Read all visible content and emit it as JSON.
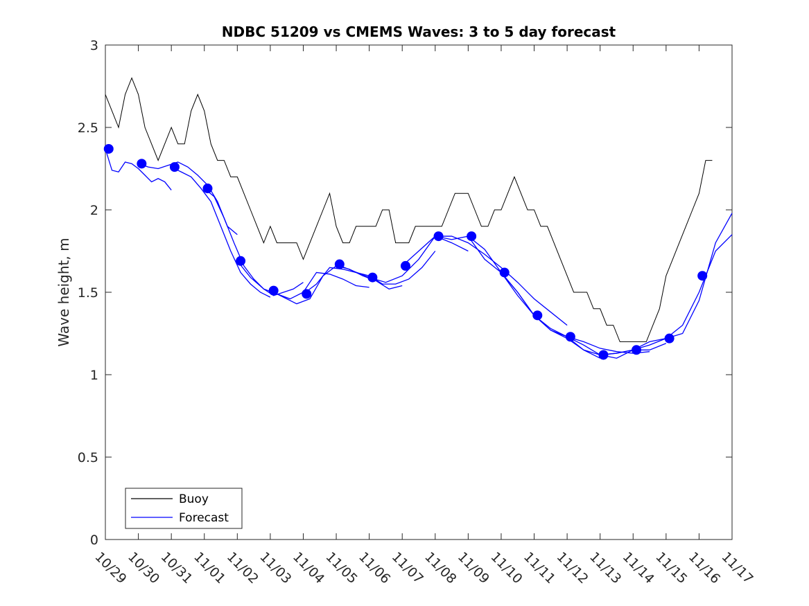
{
  "chart_data": {
    "type": "line",
    "title": "NDBC 51209 vs CMEMS Waves: 3 to 5 day forecast",
    "xlabel": "",
    "ylabel": "Wave height, m",
    "x_tick_labels": [
      "10/29",
      "10/30",
      "10/31",
      "11/01",
      "11/02",
      "11/03",
      "11/04",
      "11/05",
      "11/06",
      "11/07",
      "11/08",
      "11/09",
      "11/10",
      "11/11",
      "11/12",
      "11/13",
      "11/14",
      "11/15",
      "11/16",
      "11/17"
    ],
    "xlim_days": [
      0,
      19
    ],
    "ylim": [
      0,
      3
    ],
    "y_ticks": [
      0,
      0.5,
      1,
      1.5,
      2,
      2.5,
      3
    ],
    "y_tick_labels": [
      "0",
      "0.5",
      "1",
      "1.5",
      "2",
      "2.5",
      "3"
    ],
    "grid": false,
    "legend_position": "bottom-left",
    "colors": {
      "buoy": "#000000",
      "forecast": "#0000ff"
    },
    "series": [
      {
        "name": "Buoy",
        "type": "line",
        "x": [
          0,
          0.2,
          0.4,
          0.6,
          0.8,
          1.0,
          1.2,
          1.4,
          1.6,
          1.8,
          2.0,
          2.2,
          2.4,
          2.6,
          2.8,
          3.0,
          3.2,
          3.4,
          3.6,
          3.8,
          4.0,
          4.2,
          4.4,
          4.6,
          4.8,
          5.0,
          5.2,
          5.4,
          5.6,
          5.8,
          6.0,
          6.2,
          6.4,
          6.6,
          6.8,
          7.0,
          7.2,
          7.4,
          7.6,
          7.8,
          8.0,
          8.2,
          8.4,
          8.6,
          8.8,
          9.0,
          9.2,
          9.4,
          9.6,
          9.8,
          10.0,
          10.2,
          10.4,
          10.6,
          10.8,
          11.0,
          11.2,
          11.4,
          11.6,
          11.8,
          12.0,
          12.2,
          12.4,
          12.6,
          12.8,
          13.0,
          13.2,
          13.4,
          13.6,
          13.8,
          14.0,
          14.2,
          14.4,
          14.6,
          14.8,
          15.0,
          15.2,
          15.4,
          15.6,
          15.8,
          16.0,
          16.2,
          16.4,
          16.6,
          16.8,
          17.0,
          17.2,
          17.4,
          17.6,
          17.8,
          18.0,
          18.2,
          18.4
        ],
        "y": [
          2.7,
          2.6,
          2.5,
          2.7,
          2.8,
          2.7,
          2.5,
          2.4,
          2.3,
          2.4,
          2.5,
          2.4,
          2.4,
          2.6,
          2.7,
          2.6,
          2.4,
          2.3,
          2.3,
          2.2,
          2.2,
          2.1,
          2.0,
          1.9,
          1.8,
          1.9,
          1.8,
          1.8,
          1.8,
          1.8,
          1.7,
          1.8,
          1.9,
          2.0,
          2.1,
          1.9,
          1.8,
          1.8,
          1.9,
          1.9,
          1.9,
          1.9,
          2.0,
          2.0,
          1.8,
          1.8,
          1.8,
          1.9,
          1.9,
          1.9,
          1.9,
          1.9,
          2.0,
          2.1,
          2.1,
          2.1,
          2.0,
          1.9,
          1.9,
          2.0,
          2.0,
          2.1,
          2.2,
          2.1,
          2.0,
          2.0,
          1.9,
          1.9,
          1.8,
          1.7,
          1.6,
          1.5,
          1.5,
          1.5,
          1.4,
          1.4,
          1.3,
          1.3,
          1.2,
          1.2,
          1.2,
          1.2,
          1.2,
          1.3,
          1.4,
          1.6,
          1.7,
          1.8,
          1.9,
          2.0,
          2.1,
          2.3,
          2.3
        ]
      },
      {
        "name": "Forecast",
        "type": "line",
        "segments": [
          {
            "x": [
              0,
              0.2,
              0.4,
              0.6,
              0.8,
              1.0,
              1.2,
              1.4,
              1.6,
              1.8,
              2.0
            ],
            "y": [
              2.37,
              2.24,
              2.23,
              2.29,
              2.28,
              2.25,
              2.21,
              2.17,
              2.19,
              2.17,
              2.12
            ]
          },
          {
            "x": [
              1.0,
              1.3,
              1.6,
              1.9,
              2.2,
              2.5,
              2.8,
              3.1,
              3.4,
              3.7,
              4.0
            ],
            "y": [
              2.28,
              2.26,
              2.25,
              2.27,
              2.29,
              2.26,
              2.21,
              2.15,
              2.05,
              1.9,
              1.85
            ]
          },
          {
            "x": [
              2.0,
              2.3,
              2.6,
              2.9,
              3.2,
              3.5,
              3.8,
              4.1,
              4.4,
              4.7,
              5.0
            ],
            "y": [
              2.26,
              2.23,
              2.2,
              2.13,
              2.05,
              1.9,
              1.75,
              1.62,
              1.55,
              1.5,
              1.47
            ]
          },
          {
            "x": [
              3.0,
              3.3,
              3.6,
              3.9,
              4.2,
              4.5,
              4.8,
              5.1,
              5.4,
              5.7,
              6.0
            ],
            "y": [
              2.13,
              2.08,
              1.95,
              1.8,
              1.66,
              1.58,
              1.52,
              1.48,
              1.5,
              1.52,
              1.56
            ]
          },
          {
            "x": [
              4.0,
              4.4,
              4.8,
              5.2,
              5.6,
              6.0,
              6.4,
              6.8,
              7.2,
              7.6,
              8.0
            ],
            "y": [
              1.69,
              1.59,
              1.52,
              1.49,
              1.46,
              1.5,
              1.62,
              1.61,
              1.58,
              1.54,
              1.53
            ]
          },
          {
            "x": [
              5.0,
              5.4,
              5.8,
              6.2,
              6.6,
              7.0,
              7.4,
              7.8,
              8.2,
              8.6,
              9.0
            ],
            "y": [
              1.51,
              1.47,
              1.43,
              1.46,
              1.6,
              1.66,
              1.64,
              1.6,
              1.57,
              1.52,
              1.54
            ]
          },
          {
            "x": [
              6.0,
              6.4,
              6.8,
              7.2,
              7.6,
              8.0,
              8.4,
              8.8,
              9.2,
              9.6,
              10.0
            ],
            "y": [
              1.49,
              1.55,
              1.65,
              1.64,
              1.62,
              1.6,
              1.55,
              1.55,
              1.58,
              1.65,
              1.75
            ]
          },
          {
            "x": [
              7.0,
              7.5,
              8.0,
              8.5,
              9.0,
              9.5,
              10.0,
              10.5,
              11.0
            ],
            "y": [
              1.67,
              1.63,
              1.59,
              1.56,
              1.6,
              1.7,
              1.84,
              1.8,
              1.75
            ]
          },
          {
            "x": [
              9.0,
              9.5,
              10.0,
              10.5,
              11.0,
              11.5,
              12.0,
              12.5,
              13.0,
              13.5,
              14.0
            ],
            "y": [
              1.66,
              1.75,
              1.84,
              1.84,
              1.8,
              1.73,
              1.65,
              1.56,
              1.46,
              1.38,
              1.3
            ]
          },
          {
            "x": [
              10.0,
              10.5,
              11.0,
              11.5,
              12.0,
              12.5,
              13.0,
              13.5,
              14.0,
              14.5,
              15.0
            ],
            "y": [
              1.84,
              1.82,
              1.84,
              1.76,
              1.62,
              1.5,
              1.36,
              1.27,
              1.22,
              1.15,
              1.1
            ]
          },
          {
            "x": [
              11.0,
              11.5,
              12.0,
              12.5,
              13.0,
              13.5,
              14.0,
              14.5,
              15.0,
              15.5,
              16.0,
              16.5
            ],
            "y": [
              1.84,
              1.7,
              1.62,
              1.48,
              1.36,
              1.28,
              1.23,
              1.2,
              1.16,
              1.14,
              1.13,
              1.14
            ]
          },
          {
            "x": [
              12.0,
              12.5,
              13.0,
              13.5,
              14.0,
              14.5,
              15.0,
              15.5,
              16.0,
              16.5,
              17.0
            ],
            "y": [
              1.62,
              1.5,
              1.36,
              1.27,
              1.23,
              1.18,
              1.12,
              1.1,
              1.15,
              1.15,
              1.19
            ]
          },
          {
            "x": [
              14.0,
              14.5,
              15.0,
              15.5,
              16.0,
              16.5,
              17.0,
              17.5,
              18.0,
              18.5,
              19.0
            ],
            "y": [
              1.23,
              1.15,
              1.12,
              1.13,
              1.15,
              1.18,
              1.22,
              1.3,
              1.5,
              1.75,
              1.85
            ]
          },
          {
            "x": [
              15.0,
              15.5,
              16.0,
              16.5,
              17.0,
              17.5,
              18.0,
              18.5,
              19.0
            ],
            "y": [
              1.12,
              1.13,
              1.15,
              1.2,
              1.22,
              1.25,
              1.45,
              1.8,
              1.98
            ]
          }
        ],
        "markers": {
          "x": [
            0.1,
            1.1,
            2.1,
            3.1,
            4.1,
            5.1,
            6.1,
            7.1,
            8.1,
            9.1,
            10.1,
            11.1,
            12.1,
            13.1,
            14.1,
            15.1,
            16.1,
            17.1,
            18.1
          ],
          "y": [
            2.37,
            2.28,
            2.26,
            2.13,
            1.69,
            1.51,
            1.49,
            1.67,
            1.59,
            1.66,
            1.84,
            1.84,
            1.62,
            1.36,
            1.23,
            1.12,
            1.15,
            1.22,
            1.6
          ]
        }
      }
    ]
  }
}
